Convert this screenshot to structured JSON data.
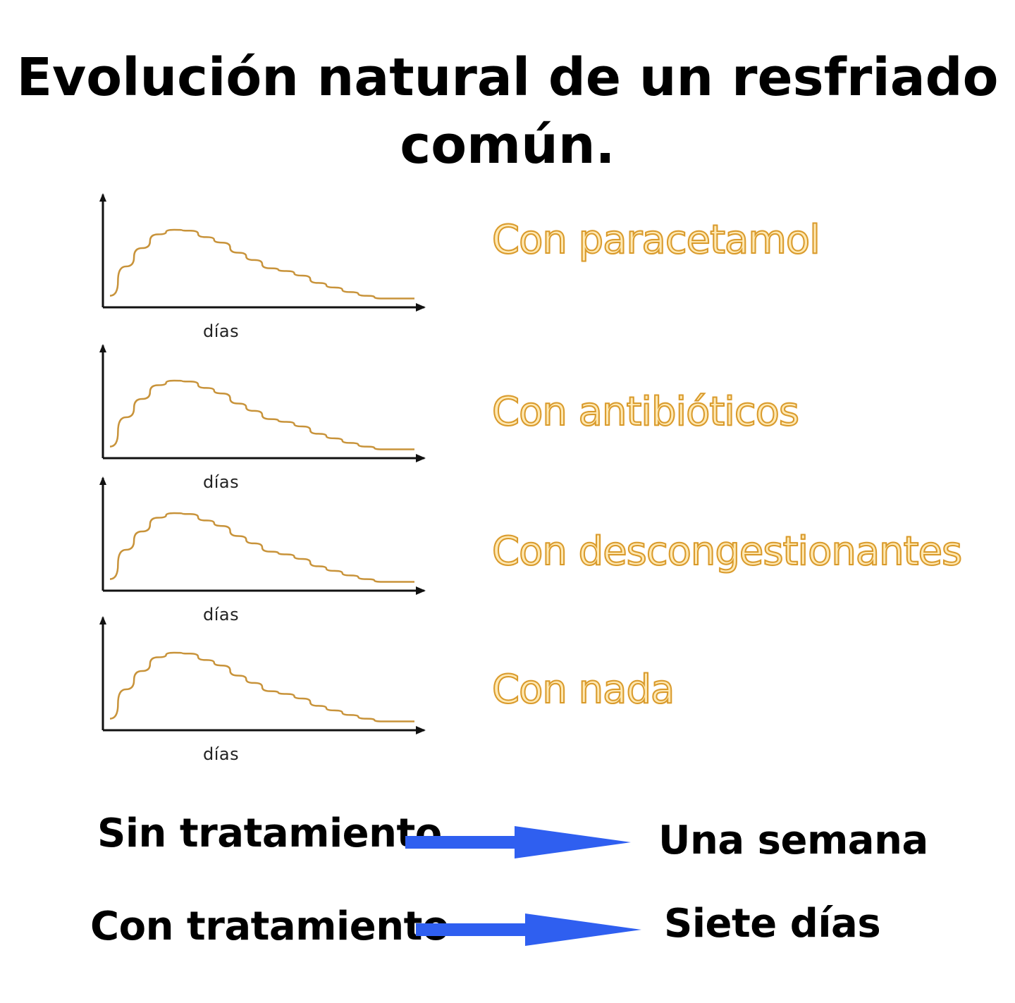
{
  "title": {
    "line1": "Evolución natural de un resfriado",
    "line2": "común."
  },
  "colors": {
    "curve": "#c8933a",
    "axis": "#111111",
    "label_fill": "#ffe9b3",
    "label_stroke": "#d99a2b",
    "arrow": "#2f5ff0"
  },
  "chart_data": [
    {
      "type": "line",
      "xlabel": "días",
      "series": [
        {
          "x": [
            0,
            1,
            2,
            3,
            4,
            5,
            6,
            7,
            8,
            9,
            10,
            11,
            12,
            13,
            14,
            15,
            16,
            17,
            18,
            19
          ],
          "values": [
            0.08,
            0.4,
            0.6,
            0.75,
            0.8,
            0.79,
            0.72,
            0.66,
            0.55,
            0.47,
            0.38,
            0.35,
            0.3,
            0.22,
            0.17,
            0.12,
            0.08,
            0.05,
            0.05,
            0.05
          ]
        }
      ],
      "grid": false,
      "label": "Con paracetamol"
    },
    {
      "type": "line",
      "xlabel": "días",
      "series": [
        {
          "x": [
            0,
            1,
            2,
            3,
            4,
            5,
            6,
            7,
            8,
            9,
            10,
            11,
            12,
            13,
            14,
            15,
            16,
            17,
            18,
            19
          ],
          "values": [
            0.08,
            0.4,
            0.6,
            0.75,
            0.8,
            0.79,
            0.72,
            0.66,
            0.55,
            0.47,
            0.38,
            0.35,
            0.3,
            0.22,
            0.17,
            0.12,
            0.08,
            0.05,
            0.05,
            0.05
          ]
        }
      ],
      "grid": false,
      "label": "Con antibióticos"
    },
    {
      "type": "line",
      "xlabel": "días",
      "series": [
        {
          "x": [
            0,
            1,
            2,
            3,
            4,
            5,
            6,
            7,
            8,
            9,
            10,
            11,
            12,
            13,
            14,
            15,
            16,
            17,
            18,
            19
          ],
          "values": [
            0.08,
            0.4,
            0.6,
            0.75,
            0.8,
            0.79,
            0.72,
            0.66,
            0.55,
            0.47,
            0.38,
            0.35,
            0.3,
            0.22,
            0.17,
            0.12,
            0.08,
            0.05,
            0.05,
            0.05
          ]
        }
      ],
      "grid": false,
      "label": "Con descongestionantes"
    },
    {
      "type": "line",
      "xlabel": "días",
      "series": [
        {
          "x": [
            0,
            1,
            2,
            3,
            4,
            5,
            6,
            7,
            8,
            9,
            10,
            11,
            12,
            13,
            14,
            15,
            16,
            17,
            18,
            19
          ],
          "values": [
            0.08,
            0.4,
            0.6,
            0.75,
            0.8,
            0.79,
            0.72,
            0.66,
            0.55,
            0.47,
            0.38,
            0.35,
            0.3,
            0.22,
            0.17,
            0.12,
            0.08,
            0.05,
            0.05,
            0.05
          ]
        }
      ],
      "grid": false,
      "label": "Con nada"
    }
  ],
  "bottom": {
    "row1": {
      "left": "Sin tratamiento",
      "right": "Una semana"
    },
    "row2": {
      "left": "Con tratamiento",
      "right": "Siete días"
    }
  }
}
